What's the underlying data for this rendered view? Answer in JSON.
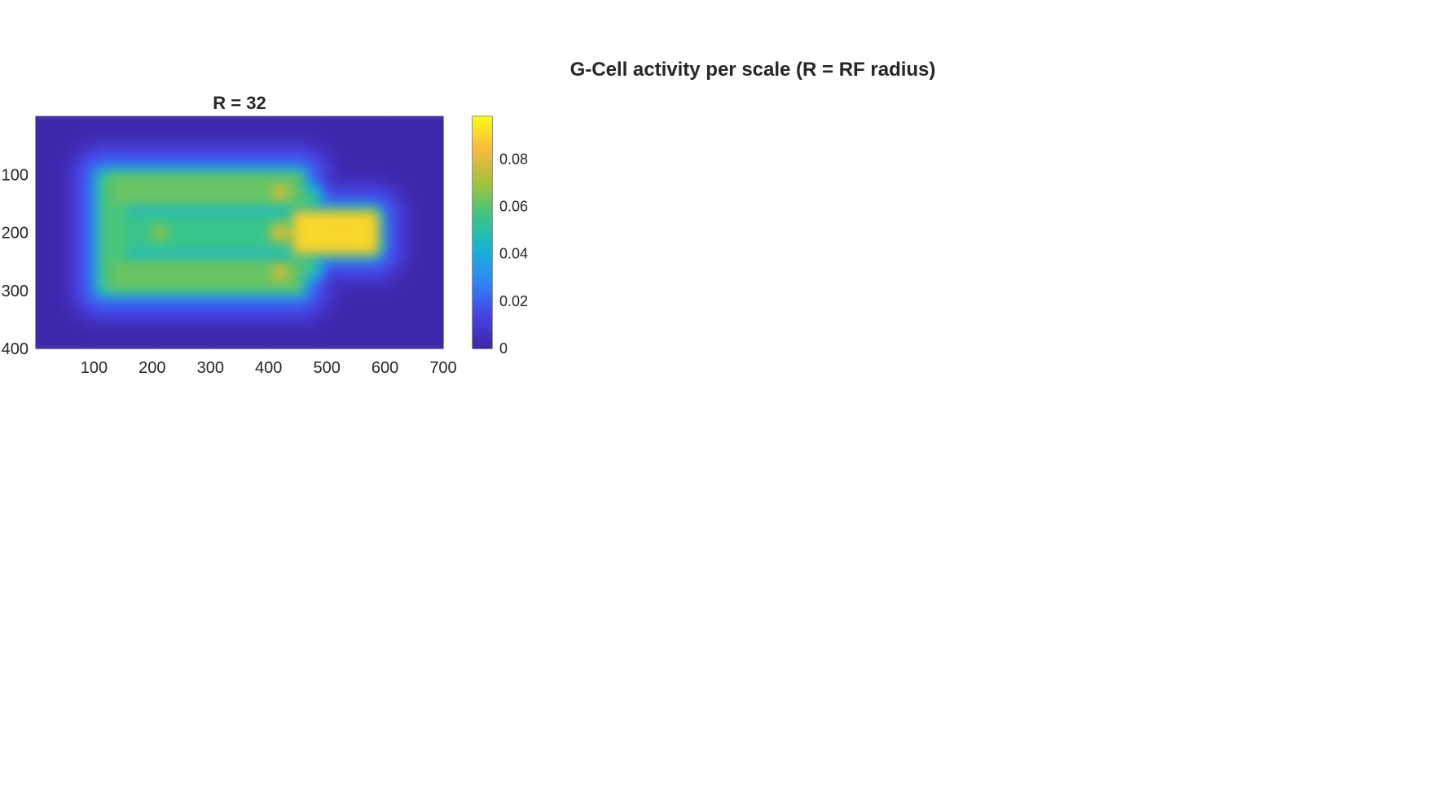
{
  "figure": {
    "title": "G-Cell activity per scale (R = RF radius)"
  },
  "chart_data": {
    "type": "heatmap",
    "title": "R = 32",
    "xlabel": "",
    "ylabel": "",
    "xlim": [
      0,
      700
    ],
    "ylim": [
      0,
      400
    ],
    "y_reversed": true,
    "xticks": [
      100,
      200,
      300,
      400,
      500,
      600,
      700
    ],
    "yticks": [
      100,
      200,
      300,
      400
    ],
    "colorbar": {
      "ticks": [
        0,
        0.02,
        0.04,
        0.06,
        0.08
      ],
      "tick_labels": [
        "0",
        "0.02",
        "0.04",
        "0.06",
        "0.08"
      ],
      "range": [
        0,
        0.098
      ],
      "colormap": "parula",
      "colors": [
        "#3e26a8",
        "#4743e6",
        "#2e87f7",
        "#14b5d6",
        "#3cc584",
        "#a6c23a",
        "#f8ba3d",
        "#f9fb15"
      ]
    },
    "background_value": 0.0,
    "halo_value": 0.025,
    "features": [
      {
        "shape": "rect",
        "x": [
          145,
          445
        ],
        "y": [
          110,
          150
        ],
        "value": 0.062
      },
      {
        "shape": "rect",
        "x": [
          145,
          445
        ],
        "y": [
          175,
          225
        ],
        "value": 0.055
      },
      {
        "shape": "rect",
        "x": [
          145,
          445
        ],
        "y": [
          250,
          290
        ],
        "value": 0.062
      },
      {
        "shape": "rect",
        "x": [
          130,
          160
        ],
        "y": [
          110,
          290
        ],
        "value": 0.058
      },
      {
        "shape": "rect",
        "x": [
          445,
          565
        ],
        "y": [
          175,
          225
        ],
        "value": 0.09
      },
      {
        "shape": "blob",
        "x": 415,
        "y": 135,
        "value": 0.082
      },
      {
        "shape": "blob",
        "x": 415,
        "y": 200,
        "value": 0.085
      },
      {
        "shape": "blob",
        "x": 415,
        "y": 265,
        "value": 0.082
      },
      {
        "shape": "blob",
        "x": 470,
        "y": 200,
        "value": 0.096
      },
      {
        "shape": "blob",
        "x": 540,
        "y": 200,
        "value": 0.094
      },
      {
        "shape": "blob",
        "x": 220,
        "y": 200,
        "value": 0.072
      },
      {
        "shape": "blob",
        "x": 150,
        "y": 135,
        "value": 0.064
      },
      {
        "shape": "blob",
        "x": 150,
        "y": 265,
        "value": 0.064
      },
      {
        "shape": "blob",
        "x": 460,
        "y": 145,
        "value": 0.06
      },
      {
        "shape": "blob",
        "x": 460,
        "y": 255,
        "value": 0.06
      }
    ]
  }
}
